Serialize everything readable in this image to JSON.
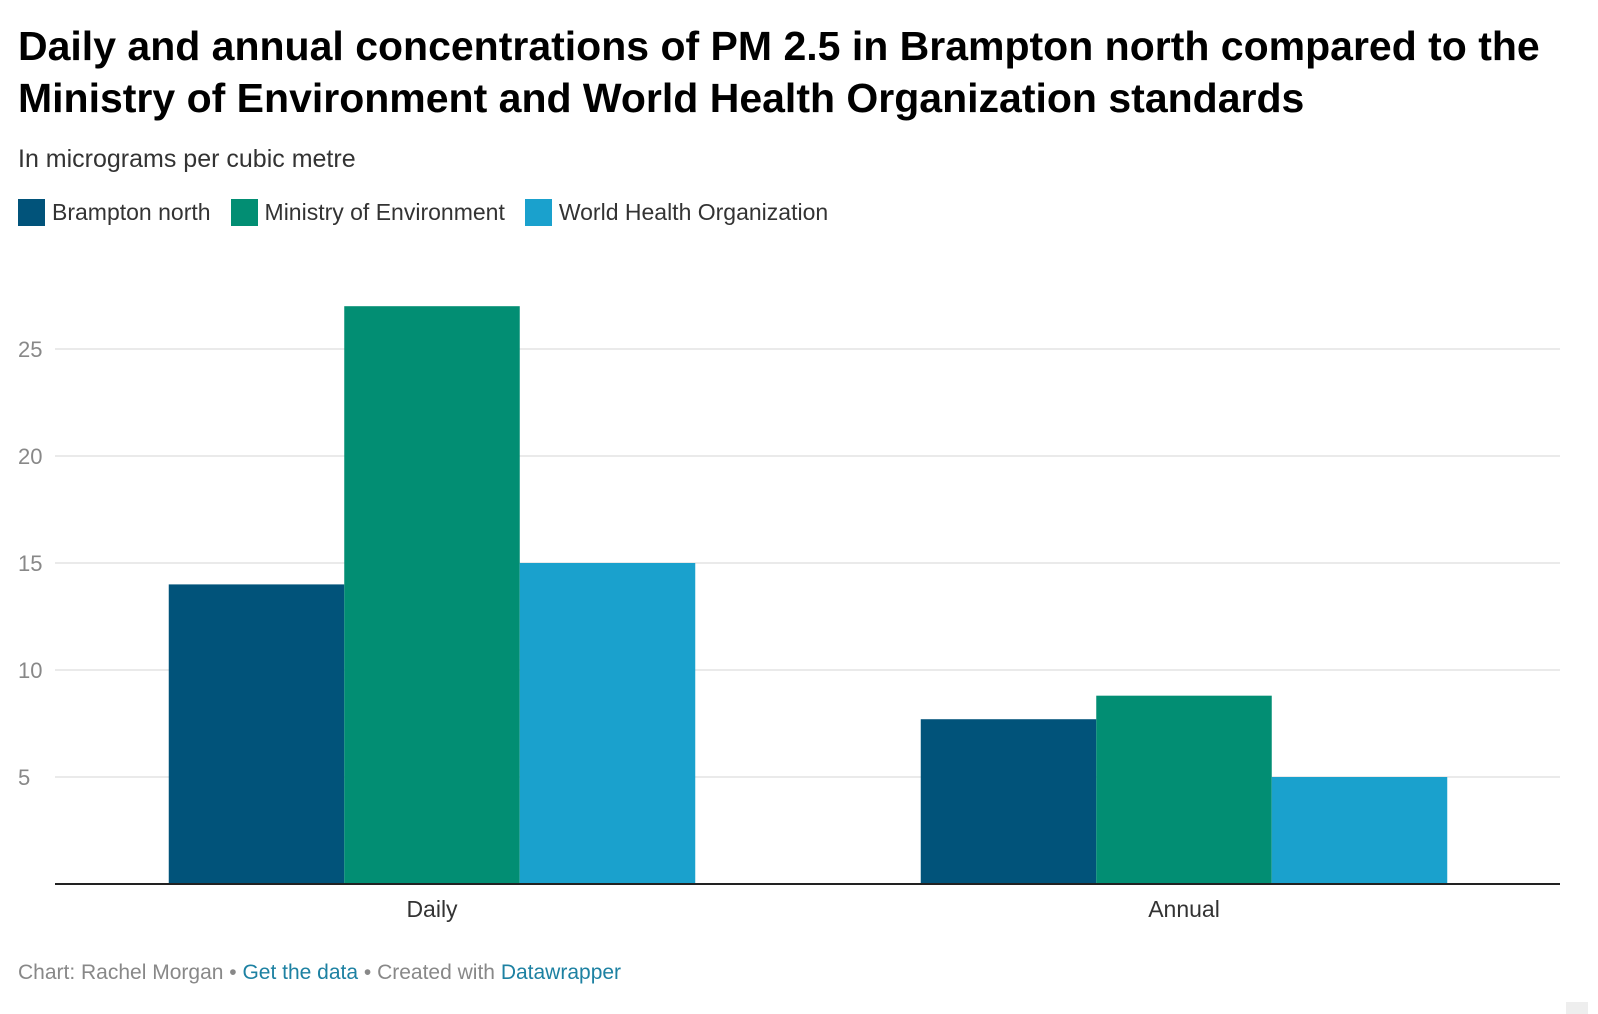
{
  "title": "Daily and annual concentrations of PM 2.5 in Brampton north compared to the Ministry of Environment and World Health Organization standards",
  "subtitle": "In micrograms per cubic metre",
  "footer": {
    "chart_by": "Chart: Rachel Morgan",
    "sep1": " • ",
    "get_data": "Get the data",
    "sep2": " • Created with ",
    "tool": "Datawrapper"
  },
  "colors": {
    "grid": "#e3e3e3",
    "axis": "#222222",
    "tick_label": "#888888",
    "category_label": "#333333"
  },
  "chart_data": {
    "type": "bar",
    "categories": [
      "Daily",
      "Annual"
    ],
    "series": [
      {
        "name": "Brampton north",
        "color": "#01537a",
        "values": [
          14,
          7.7
        ]
      },
      {
        "name": "Ministry of Environment",
        "color": "#028e73",
        "values": [
          27,
          8.8
        ]
      },
      {
        "name": "World Health Organization",
        "color": "#1aa1cd",
        "values": [
          15,
          5
        ]
      }
    ],
    "ylim": [
      0,
      27
    ],
    "yticks": [
      5,
      10,
      15,
      20,
      25
    ],
    "xlabel": "",
    "ylabel": "",
    "grid": true,
    "legend": "top-left"
  }
}
